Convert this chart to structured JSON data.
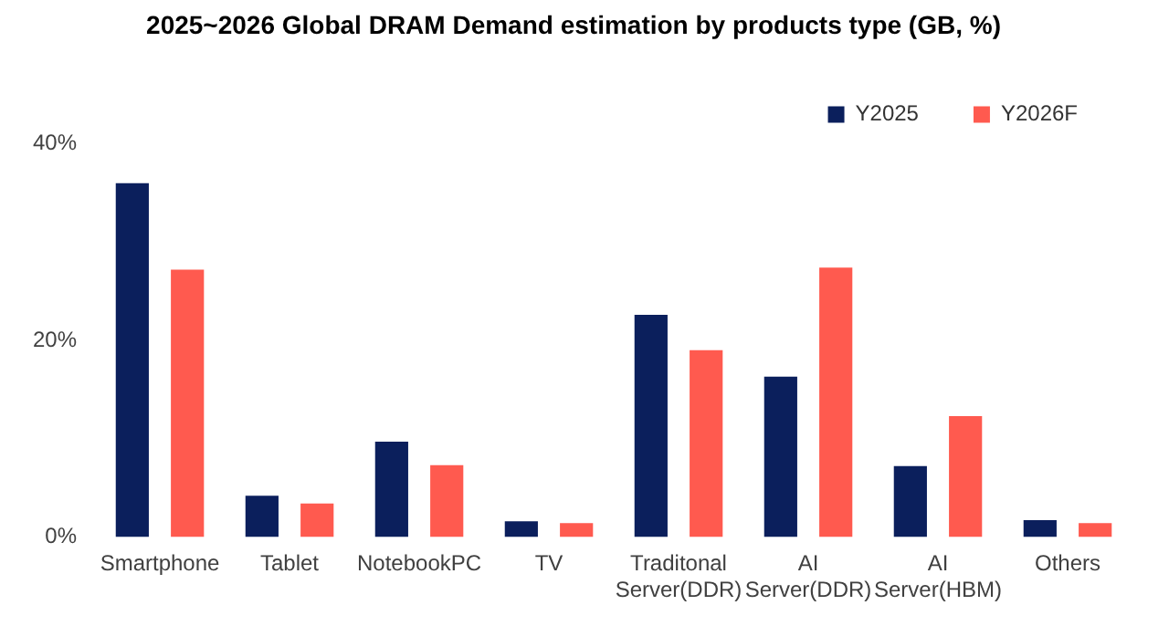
{
  "chart_data": {
    "type": "bar",
    "title": "2025~2026 Global DRAM Demand estimation by products type (GB, %)",
    "categories": [
      "Smartphone",
      "Tablet",
      "NotebookPC",
      "TV",
      "Traditonal Server(DDR)",
      "AI Server(DDR)",
      "AI Server(HBM)",
      "Others"
    ],
    "series": [
      {
        "name": "Y2025",
        "color": "#0b1f5c",
        "values": [
          36.0,
          4.2,
          9.7,
          1.6,
          22.6,
          16.3,
          7.2,
          1.7
        ]
      },
      {
        "name": "Y2026F",
        "color": "#ff5a4f",
        "values": [
          27.2,
          3.4,
          7.3,
          1.4,
          19.0,
          27.4,
          12.3,
          1.4
        ]
      }
    ],
    "ylim": [
      0,
      40
    ],
    "yticks": [
      {
        "value": 0,
        "label": "0%"
      },
      {
        "value": 20,
        "label": "20%"
      },
      {
        "value": 40,
        "label": "40%"
      }
    ],
    "grid": false,
    "legend": "top right"
  }
}
